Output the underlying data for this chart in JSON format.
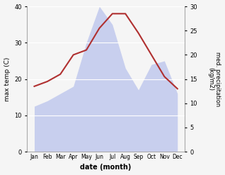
{
  "months": [
    "Jan",
    "Feb",
    "Mar",
    "Apr",
    "May",
    "Jun",
    "Jul",
    "Aug",
    "Sep",
    "Oct",
    "Nov",
    "Dec"
  ],
  "precip": [
    12.5,
    14.0,
    16.0,
    18.0,
    30.0,
    40.0,
    35.0,
    23.0,
    17.0,
    24.0,
    25.0,
    16.0
  ],
  "max_temp": [
    13.5,
    14.5,
    16.0,
    20.0,
    21.0,
    25.5,
    28.5,
    28.5,
    24.5,
    20.0,
    15.5,
    13.0
  ],
  "temp_color": "#b03030",
  "precip_color_fill": "#c8cfee",
  "ylabel_left": "max temp (C)",
  "ylabel_right": "med. precipitation\n(kg/m2)",
  "xlabel": "date (month)",
  "ylim_left": [
    0,
    40
  ],
  "ylim_right": [
    0,
    30
  ],
  "yticks_left": [
    0,
    10,
    20,
    30,
    40
  ],
  "yticks_right": [
    0,
    5,
    10,
    15,
    20,
    25,
    30
  ],
  "bg_color": "#f5f5f5",
  "grid_color": "#ffffff"
}
